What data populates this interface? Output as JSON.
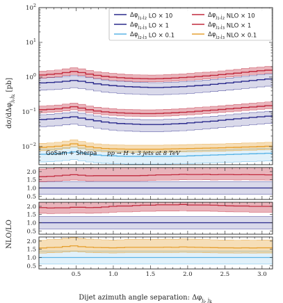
{
  "chart_data": {
    "type": "line",
    "x_edges": [
      0.0,
      0.105,
      0.209,
      0.314,
      0.419,
      0.524,
      0.628,
      0.733,
      0.838,
      0.942,
      1.047,
      1.152,
      1.257,
      1.361,
      1.466,
      1.571,
      1.676,
      1.78,
      1.885,
      1.99,
      2.094,
      2.199,
      2.304,
      2.409,
      2.513,
      2.618,
      2.723,
      2.827,
      2.932,
      3.037,
      3.142
    ],
    "xlim": [
      0,
      3.1416
    ],
    "xticks": [
      0.5,
      1.0,
      1.5,
      2.0,
      2.5,
      3.0
    ],
    "xtick_labels": [
      "0.5",
      "1.0",
      "1.5",
      "2.0",
      "2.5",
      "3.0"
    ],
    "xlabel": "Dijet azimuth angle separation:  Δφ",
    "xlabel_sub": "j",
    "xlabel_subsub1": "i",
    "xlabel_subsub2": "k",
    "xlabel_comma": ", j",
    "main": {
      "ylabel_prefix": "dσ/dΔφ",
      "ylabel_sub": "j",
      "ylabel_subsub1": "i",
      "ylabel_comma": ",j",
      "ylabel_subsub2": "k",
      "ylabel_unit": " [pb]",
      "yscale": "log",
      "ylim": [
        0.003,
        100
      ],
      "yticks": [
        0.01,
        0.1,
        1,
        10,
        100
      ],
      "ytick_labels": [
        "10",
        "10",
        "10",
        "10",
        "10"
      ],
      "ytick_exps": [
        "−2",
        "−1",
        "0",
        "1",
        "2"
      ],
      "series": [
        {
          "group": "j1j2",
          "order": "LO",
          "scale": "× 10",
          "color": "#2a2a8c",
          "values": [
            0.68,
            0.7,
            0.72,
            0.76,
            0.8,
            0.76,
            0.7,
            0.64,
            0.6,
            0.57,
            0.55,
            0.53,
            0.52,
            0.51,
            0.5,
            0.5,
            0.51,
            0.52,
            0.53,
            0.55,
            0.57,
            0.59,
            0.62,
            0.65,
            0.68,
            0.72,
            0.76,
            0.8,
            0.84,
            0.88
          ],
          "band_rel": [
            0.62,
            1.38
          ]
        },
        {
          "group": "j1j2",
          "order": "NLO",
          "scale": "× 10",
          "color": "#c0283c",
          "values": [
            1.15,
            1.2,
            1.25,
            1.35,
            1.45,
            1.35,
            1.22,
            1.12,
            1.05,
            1.0,
            0.96,
            0.93,
            0.91,
            0.9,
            0.89,
            0.9,
            0.92,
            0.94,
            0.97,
            1.0,
            1.04,
            1.08,
            1.12,
            1.18,
            1.24,
            1.3,
            1.38,
            1.45,
            1.52,
            1.58
          ],
          "band_rel": [
            0.82,
            1.28
          ]
        },
        {
          "group": "j1j3",
          "order": "LO",
          "scale": "× 1",
          "color": "#2a2a8c",
          "values": [
            0.06,
            0.062,
            0.064,
            0.068,
            0.072,
            0.066,
            0.06,
            0.055,
            0.051,
            0.048,
            0.046,
            0.045,
            0.044,
            0.043,
            0.043,
            0.043,
            0.044,
            0.045,
            0.046,
            0.048,
            0.05,
            0.052,
            0.054,
            0.057,
            0.06,
            0.063,
            0.066,
            0.069,
            0.072,
            0.075
          ],
          "band_rel": [
            0.62,
            1.38
          ]
        },
        {
          "group": "j1j3",
          "order": "NLO",
          "scale": "× 1",
          "color": "#c0283c",
          "values": [
            0.115,
            0.118,
            0.122,
            0.13,
            0.14,
            0.128,
            0.115,
            0.106,
            0.1,
            0.096,
            0.093,
            0.091,
            0.09,
            0.089,
            0.089,
            0.09,
            0.092,
            0.094,
            0.097,
            0.1,
            0.104,
            0.108,
            0.112,
            0.117,
            0.122,
            0.127,
            0.133,
            0.138,
            0.144,
            0.15
          ],
          "band_rel": [
            0.82,
            1.28
          ]
        },
        {
          "group": "j2j3",
          "order": "LO",
          "scale": "× 0.1",
          "color": "#5ab4e6",
          "values": [
            0.006,
            0.0061,
            0.0063,
            0.0066,
            0.007,
            0.0065,
            0.006,
            0.0057,
            0.0055,
            0.0054,
            0.0053,
            0.0052,
            0.0052,
            0.0052,
            0.0052,
            0.0052,
            0.0052,
            0.0053,
            0.0053,
            0.0054,
            0.0055,
            0.0056,
            0.0057,
            0.0058,
            0.0059,
            0.006,
            0.0061,
            0.0062,
            0.0063,
            0.0064
          ],
          "band_rel": [
            0.6,
            1.4
          ]
        },
        {
          "group": "j2j3",
          "order": "NLO",
          "scale": "× 0.1",
          "color": "#e6a030",
          "values": [
            0.0095,
            0.0098,
            0.0102,
            0.011,
            0.012,
            0.0108,
            0.0098,
            0.0092,
            0.0088,
            0.0086,
            0.0085,
            0.0084,
            0.0084,
            0.0084,
            0.0084,
            0.0084,
            0.0085,
            0.0086,
            0.0087,
            0.0088,
            0.0089,
            0.009,
            0.0091,
            0.0092,
            0.0094,
            0.0095,
            0.0097,
            0.0098,
            0.01,
            0.0102
          ],
          "band_rel": [
            0.8,
            1.3
          ]
        }
      ],
      "legend_placement": "top-right"
    },
    "ratio": {
      "ylabel": "NLO/LO",
      "ylim": [
        0.3,
        2.25
      ],
      "yticks": [
        0.5,
        1.0,
        1.5,
        2.0
      ],
      "ytick_labels": [
        "0.5",
        "1.0",
        "1.5",
        "2.0"
      ],
      "panels": [
        {
          "group": "j1j2",
          "lo_color": "#2a2a8c",
          "nlo_color": "#c0283c",
          "values": [
            1.69,
            1.71,
            1.74,
            1.78,
            1.81,
            1.78,
            1.74,
            1.75,
            1.75,
            1.75,
            1.75,
            1.75,
            1.75,
            1.76,
            1.78,
            1.8,
            1.8,
            1.81,
            1.83,
            1.82,
            1.82,
            1.83,
            1.81,
            1.82,
            1.82,
            1.81,
            1.82,
            1.81,
            1.81,
            1.8
          ],
          "lo_band": [
            0.62,
            1.38
          ],
          "nlo_band_rel": [
            0.82,
            1.28
          ]
        },
        {
          "group": "j1j3",
          "lo_color": "#2a2a8c",
          "nlo_color": "#c0283c",
          "values": [
            1.92,
            1.9,
            1.91,
            1.91,
            1.94,
            1.94,
            1.92,
            1.93,
            1.96,
            2.0,
            2.02,
            2.02,
            2.05,
            2.07,
            2.07,
            2.09,
            2.09,
            2.09,
            2.11,
            2.08,
            2.08,
            2.08,
            2.07,
            2.05,
            2.03,
            2.02,
            2.02,
            2.0,
            2.0,
            2.0
          ],
          "lo_band": [
            0.62,
            1.38
          ],
          "nlo_band_rel": [
            0.82,
            1.28
          ]
        },
        {
          "group": "j2j3",
          "lo_color": "#5ab4e6",
          "nlo_color": "#e6a030",
          "values": [
            1.58,
            1.61,
            1.62,
            1.67,
            1.71,
            1.66,
            1.63,
            1.61,
            1.6,
            1.59,
            1.6,
            1.62,
            1.62,
            1.62,
            1.62,
            1.62,
            1.63,
            1.62,
            1.64,
            1.63,
            1.62,
            1.61,
            1.6,
            1.59,
            1.59,
            1.58,
            1.59,
            1.58,
            1.59,
            1.59
          ],
          "lo_band": [
            0.6,
            1.4
          ],
          "nlo_band_rel": [
            0.8,
            1.3
          ]
        }
      ]
    },
    "annotation_left": "GoSam + Sherpa",
    "annotation_right": "pp → H + 3 jets at 8 TeV"
  }
}
